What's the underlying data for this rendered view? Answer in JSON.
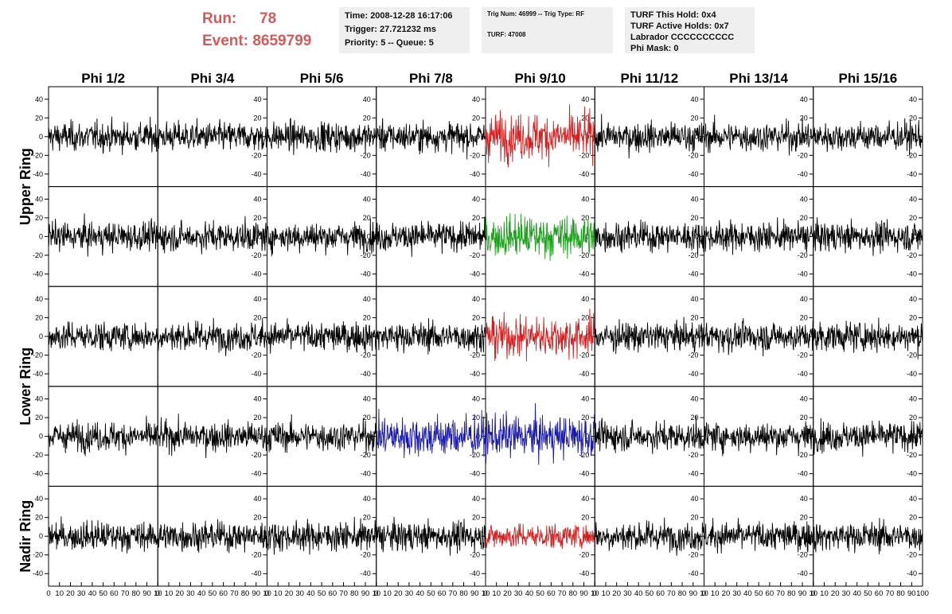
{
  "header": {
    "run_label": "Run:",
    "run_value": "78",
    "event_label": "Event:",
    "event_value": "8659799",
    "time_line": "Time: 2008-12-28 16:17:06",
    "trigger_line": "Trigger: 27.721232 ms",
    "priority_line": "Priority: 5 -- Queue: 5",
    "trig_num_line": "Trig Num: 46999 -- Trig Type: RF",
    "turf_line": "TURF: 47008",
    "turf_hold_line": "TURF This Hold: 0x4",
    "turf_active_line": "TURF Active Holds: 0x7",
    "labrador_line": "Labrador CCCCCCCCCC",
    "phi_mask_line": "Phi Mask: 0"
  },
  "chart_data": {
    "type": "line",
    "columns": [
      "Phi 1/2",
      "Phi 3/4",
      "Phi 5/6",
      "Phi 7/8",
      "Phi 9/10",
      "Phi 11/12",
      "Phi 13/14",
      "Phi 15/16"
    ],
    "rows": [
      "Upper Ring",
      "Upper Ring",
      "Lower Ring",
      "Lower Ring",
      "Nadir Ring"
    ],
    "row_labels": [
      {
        "text": "Upper Ring",
        "rows": [
          0,
          1
        ]
      },
      {
        "text": "Lower Ring",
        "rows": [
          2,
          3
        ]
      },
      {
        "text": "Nadir Ring",
        "rows": [
          4,
          4
        ]
      }
    ],
    "xlim": [
      0,
      100
    ],
    "ylim": [
      -50,
      50
    ],
    "x_ticks": [
      0,
      10,
      20,
      30,
      40,
      50,
      60,
      70,
      80,
      90,
      100
    ],
    "y_ticks": [
      -40,
      -20,
      0,
      20,
      40
    ],
    "default_color": "#000000",
    "grid": false,
    "highlighted": [
      {
        "row": 0,
        "col": 4,
        "color": "#d42020"
      },
      {
        "row": 1,
        "col": 4,
        "color": "#1aa01a"
      },
      {
        "row": 2,
        "col": 4,
        "color": "#d42020"
      },
      {
        "row": 3,
        "col": 3,
        "color": "#1a1aa8"
      },
      {
        "row": 3,
        "col": 4,
        "color": "#1a1aa8"
      },
      {
        "row": 4,
        "col": 4,
        "color": "#d42020"
      }
    ],
    "amplitude": {
      "default": 14,
      "cells": [
        {
          "row": 0,
          "col": 4,
          "value": 22
        },
        {
          "row": 1,
          "col": 4,
          "value": 20
        },
        {
          "row": 2,
          "col": 4,
          "value": 20
        },
        {
          "row": 3,
          "col": 3,
          "value": 20
        },
        {
          "row": 3,
          "col": 4,
          "value": 20
        },
        {
          "row": 4,
          "col": 4,
          "value": 12
        }
      ]
    },
    "samples_per_trace": 260
  }
}
